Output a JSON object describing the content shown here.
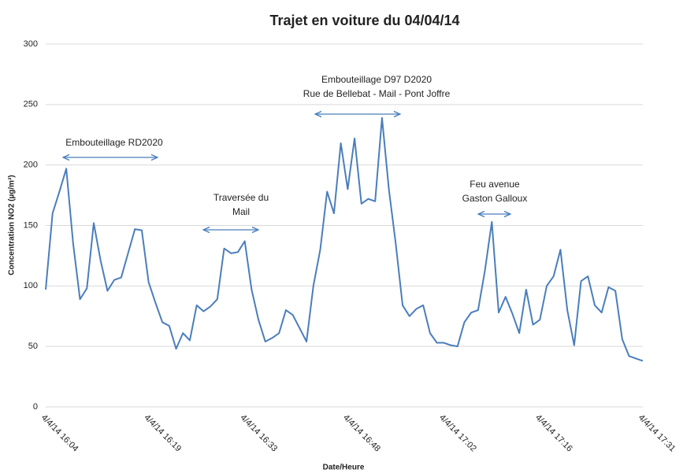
{
  "chart_data": {
    "type": "line",
    "title": "Trajet en voiture du 04/04/14",
    "y_label": "Concentration NO2 (µg/m³)",
    "x_label": "Date/Heure",
    "categories": [
      "4/4/14 16:04",
      null,
      null,
      null,
      null,
      null,
      null,
      null,
      null,
      null,
      null,
      null,
      null,
      null,
      null,
      "4/4/14 16:19",
      null,
      null,
      null,
      null,
      null,
      null,
      null,
      null,
      null,
      null,
      null,
      null,
      null,
      "4/4/14 16:33",
      null,
      null,
      null,
      null,
      null,
      null,
      null,
      null,
      null,
      null,
      null,
      null,
      null,
      null,
      "4/4/14 16:48",
      null,
      null,
      null,
      null,
      null,
      null,
      null,
      null,
      null,
      null,
      null,
      null,
      null,
      "4/4/14 17:02",
      null,
      null,
      null,
      null,
      null,
      null,
      null,
      null,
      null,
      null,
      null,
      null,
      null,
      "4/4/14 17:16",
      null,
      null,
      null,
      null,
      null,
      null,
      null,
      null,
      null,
      null,
      null,
      null,
      null,
      null,
      "4/4/14 17:31"
    ],
    "values": [
      97,
      160,
      178,
      197,
      135,
      89,
      98,
      152,
      121,
      96,
      105,
      107,
      127,
      147,
      146,
      103,
      86,
      70,
      67,
      48,
      61,
      55,
      84,
      79,
      83,
      89,
      131,
      127,
      128,
      137,
      97,
      72,
      54,
      57,
      61,
      80,
      76,
      65,
      54,
      100,
      130,
      178,
      160,
      218,
      180,
      222,
      168,
      172,
      170,
      239,
      180,
      135,
      84,
      75,
      81,
      84,
      61,
      53,
      53,
      51,
      50,
      70,
      78,
      80,
      113,
      153,
      78,
      91,
      77,
      61,
      97,
      68,
      72,
      100,
      108,
      130,
      80,
      51,
      104,
      108,
      84,
      78,
      99,
      96,
      56,
      42,
      40,
      38
    ],
    "color": "#4a7ebb",
    "ylim": [
      0,
      300
    ],
    "yticks": [
      0,
      50,
      100,
      150,
      200,
      250,
      300
    ],
    "grid": true,
    "annotations": [
      [
        "Embouteillage RD2020"
      ],
      [
        "Traversée du",
        "Mail"
      ],
      [
        "Embouteillage D97 D2020",
        "Rue de Bellebat - Mail - Pont Joffre"
      ],
      [
        "Feu avenue",
        "Gaston Galloux"
      ]
    ]
  }
}
